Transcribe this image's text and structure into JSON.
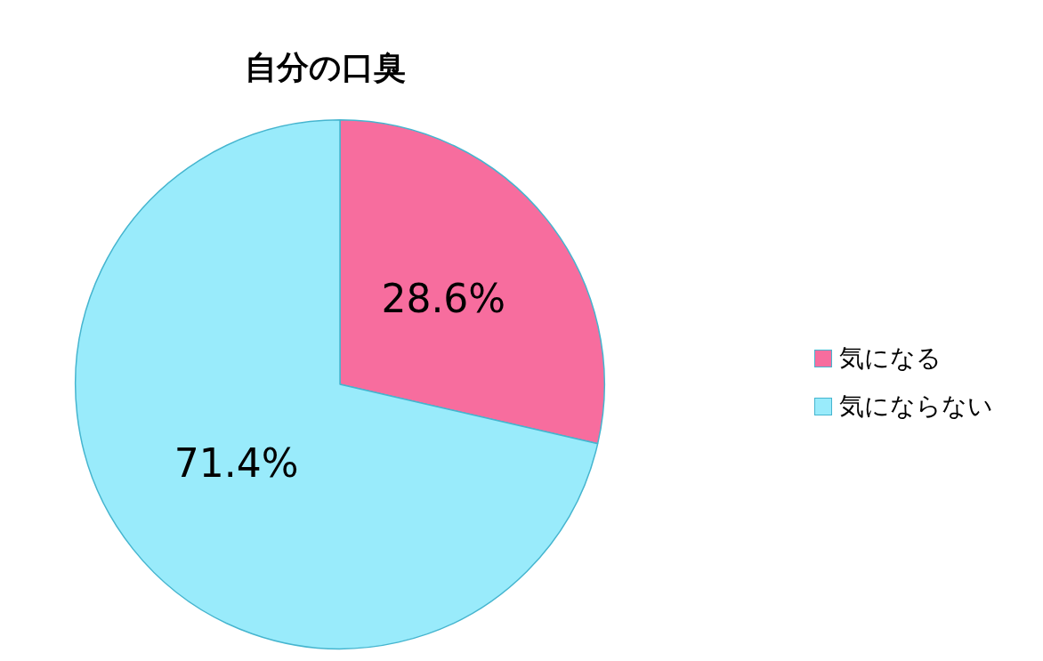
{
  "chart_data": {
    "type": "pie",
    "title": "自分の口臭",
    "categories": [
      "気になる",
      "気にならない"
    ],
    "values": [
      28.6,
      71.4
    ],
    "value_labels": [
      "28.6%",
      "71.4%"
    ],
    "colors": [
      "#f76d9e",
      "#99ebfb"
    ],
    "legend": "right"
  }
}
